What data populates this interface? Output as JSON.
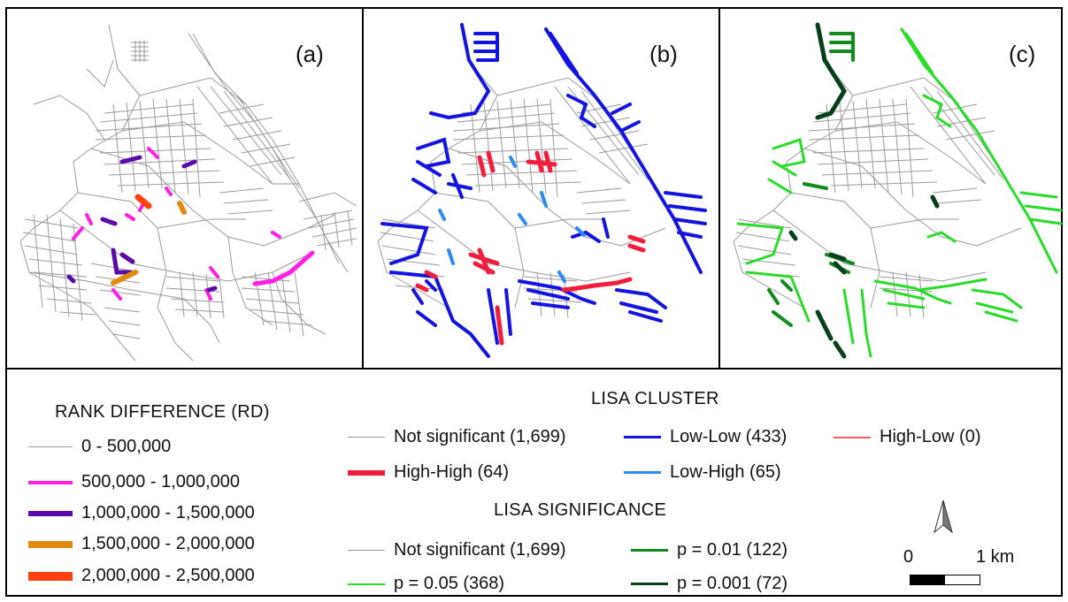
{
  "panels": [
    {
      "label": "(a)"
    },
    {
      "label": "(b)"
    },
    {
      "label": "(c)"
    }
  ],
  "rd_legend": {
    "title": "RANK DIFFERENCE (RD)",
    "items": [
      {
        "label": "0 - 500,000",
        "color": "#9a9a9a"
      },
      {
        "label": "500,000 - 1,000,000",
        "color": "#ff1ee6"
      },
      {
        "label": "1,000,000 - 1,500,000",
        "color": "#5a0aa8"
      },
      {
        "label": "1,500,000 - 2,000,000",
        "color": "#e08a10"
      },
      {
        "label": "2,000,000 - 2,500,000",
        "color": "#ff4010"
      }
    ]
  },
  "lisa_cluster": {
    "title": "LISA CLUSTER",
    "items": [
      {
        "label": "Not significant (1,699)",
        "color": "#9a9a9a"
      },
      {
        "label": "Low-Low (433)",
        "color": "#1414e0"
      },
      {
        "label": "High-Low (0)",
        "color": "#ff5a5a"
      },
      {
        "label": "High-High (64)",
        "color": "#f01e3c"
      },
      {
        "label": "Low-High (65)",
        "color": "#2a8cf0"
      }
    ]
  },
  "lisa_significance": {
    "title": "LISA SIGNIFICANCE",
    "items": [
      {
        "label": "Not significant (1,699)",
        "color": "#9a9a9a"
      },
      {
        "label": "p = 0.01 (122)",
        "color": "#138a1e"
      },
      {
        "label": "p = 0.05 (368)",
        "color": "#2adc2a"
      },
      {
        "label": "p = 0.001 (72)",
        "color": "#06401a"
      }
    ]
  },
  "scale_bar": {
    "start": "0",
    "end": "1 km"
  },
  "north_arrow": {
    "icon": "north-arrow-icon"
  }
}
